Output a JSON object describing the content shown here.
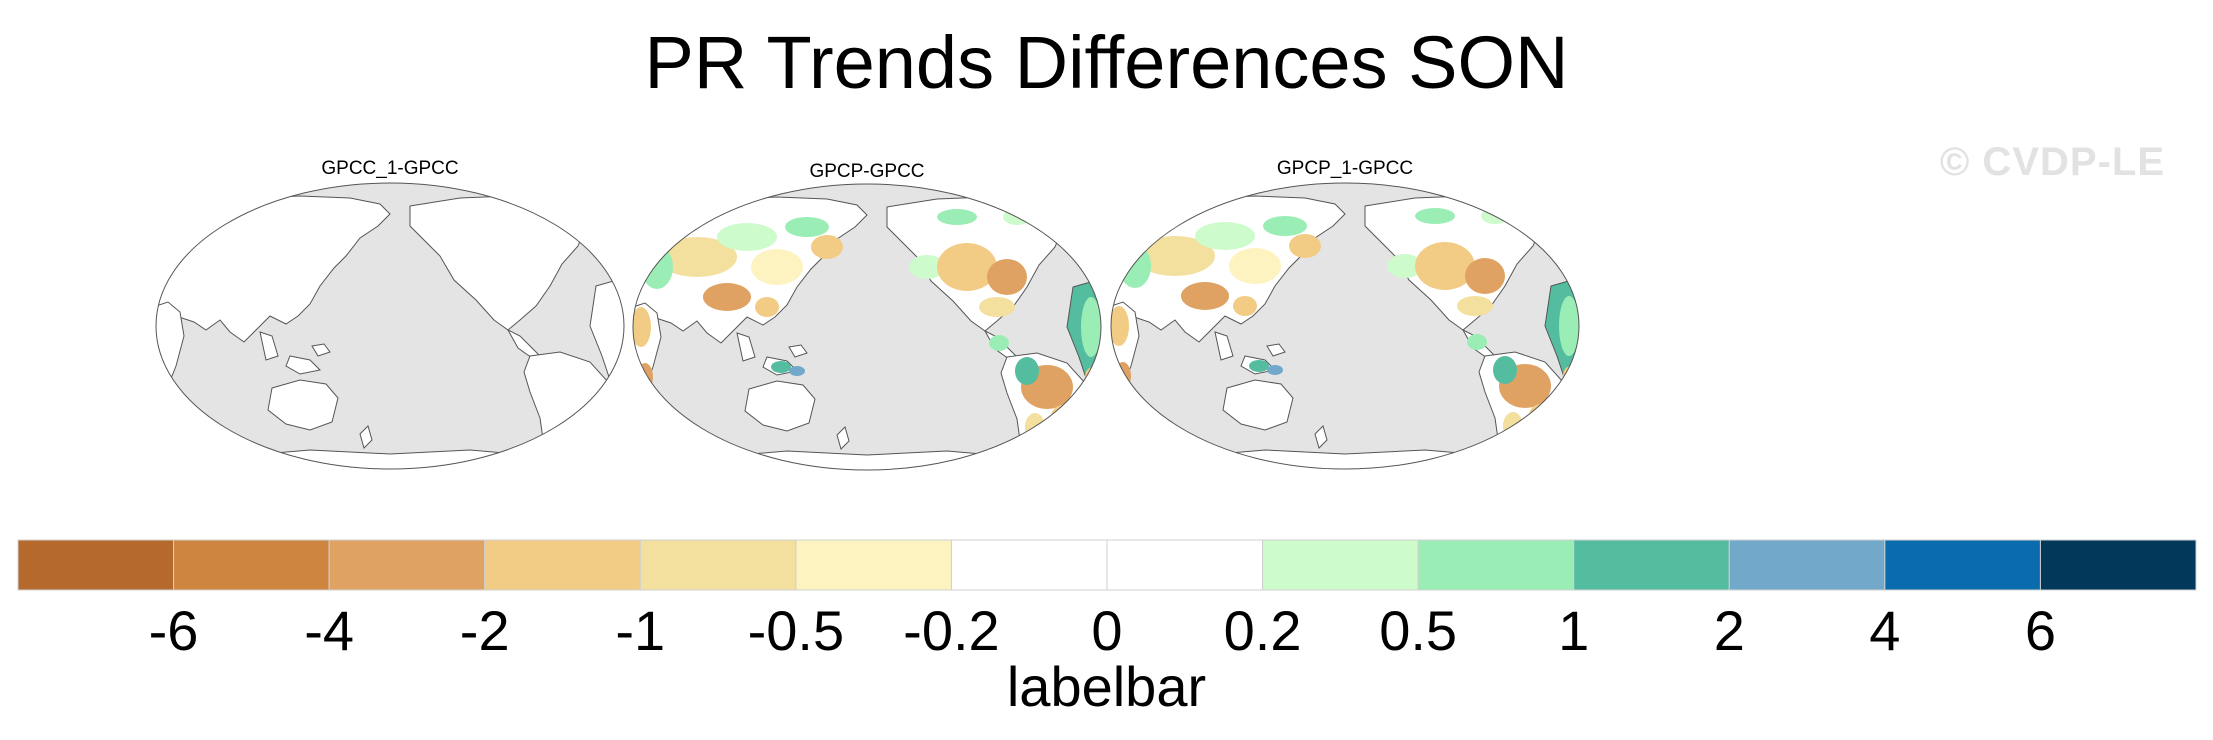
{
  "title": "PR Trends Differences SON",
  "watermark": "© CVDP-LE",
  "panels": [
    {
      "title": "GPCC_1-GPCC"
    },
    {
      "title": "GPCP-GPCC"
    },
    {
      "title": "GPCP_1-GPCC"
    }
  ],
  "colorbar": {
    "title": "labelbar",
    "colors": [
      "#b5692c",
      "#cd853f",
      "#e0a262",
      "#f2cc85",
      "#f3df9e",
      "#fdf3c1",
      "#ffffff",
      "#ffffff",
      "#cdfbcc",
      "#9aeeb5",
      "#54bd9f",
      "#72a8c9",
      "#0a6bad",
      "#02395a"
    ],
    "labels": [
      "-6",
      "-4",
      "-2",
      "-1",
      "-0.5",
      "-0.2",
      "0",
      "0.2",
      "0.5",
      "1",
      "2",
      "4",
      "6"
    ]
  },
  "colors": {
    "ocean": "#e4e4e4",
    "land": "#ffffff",
    "coastline": "#555555"
  }
}
